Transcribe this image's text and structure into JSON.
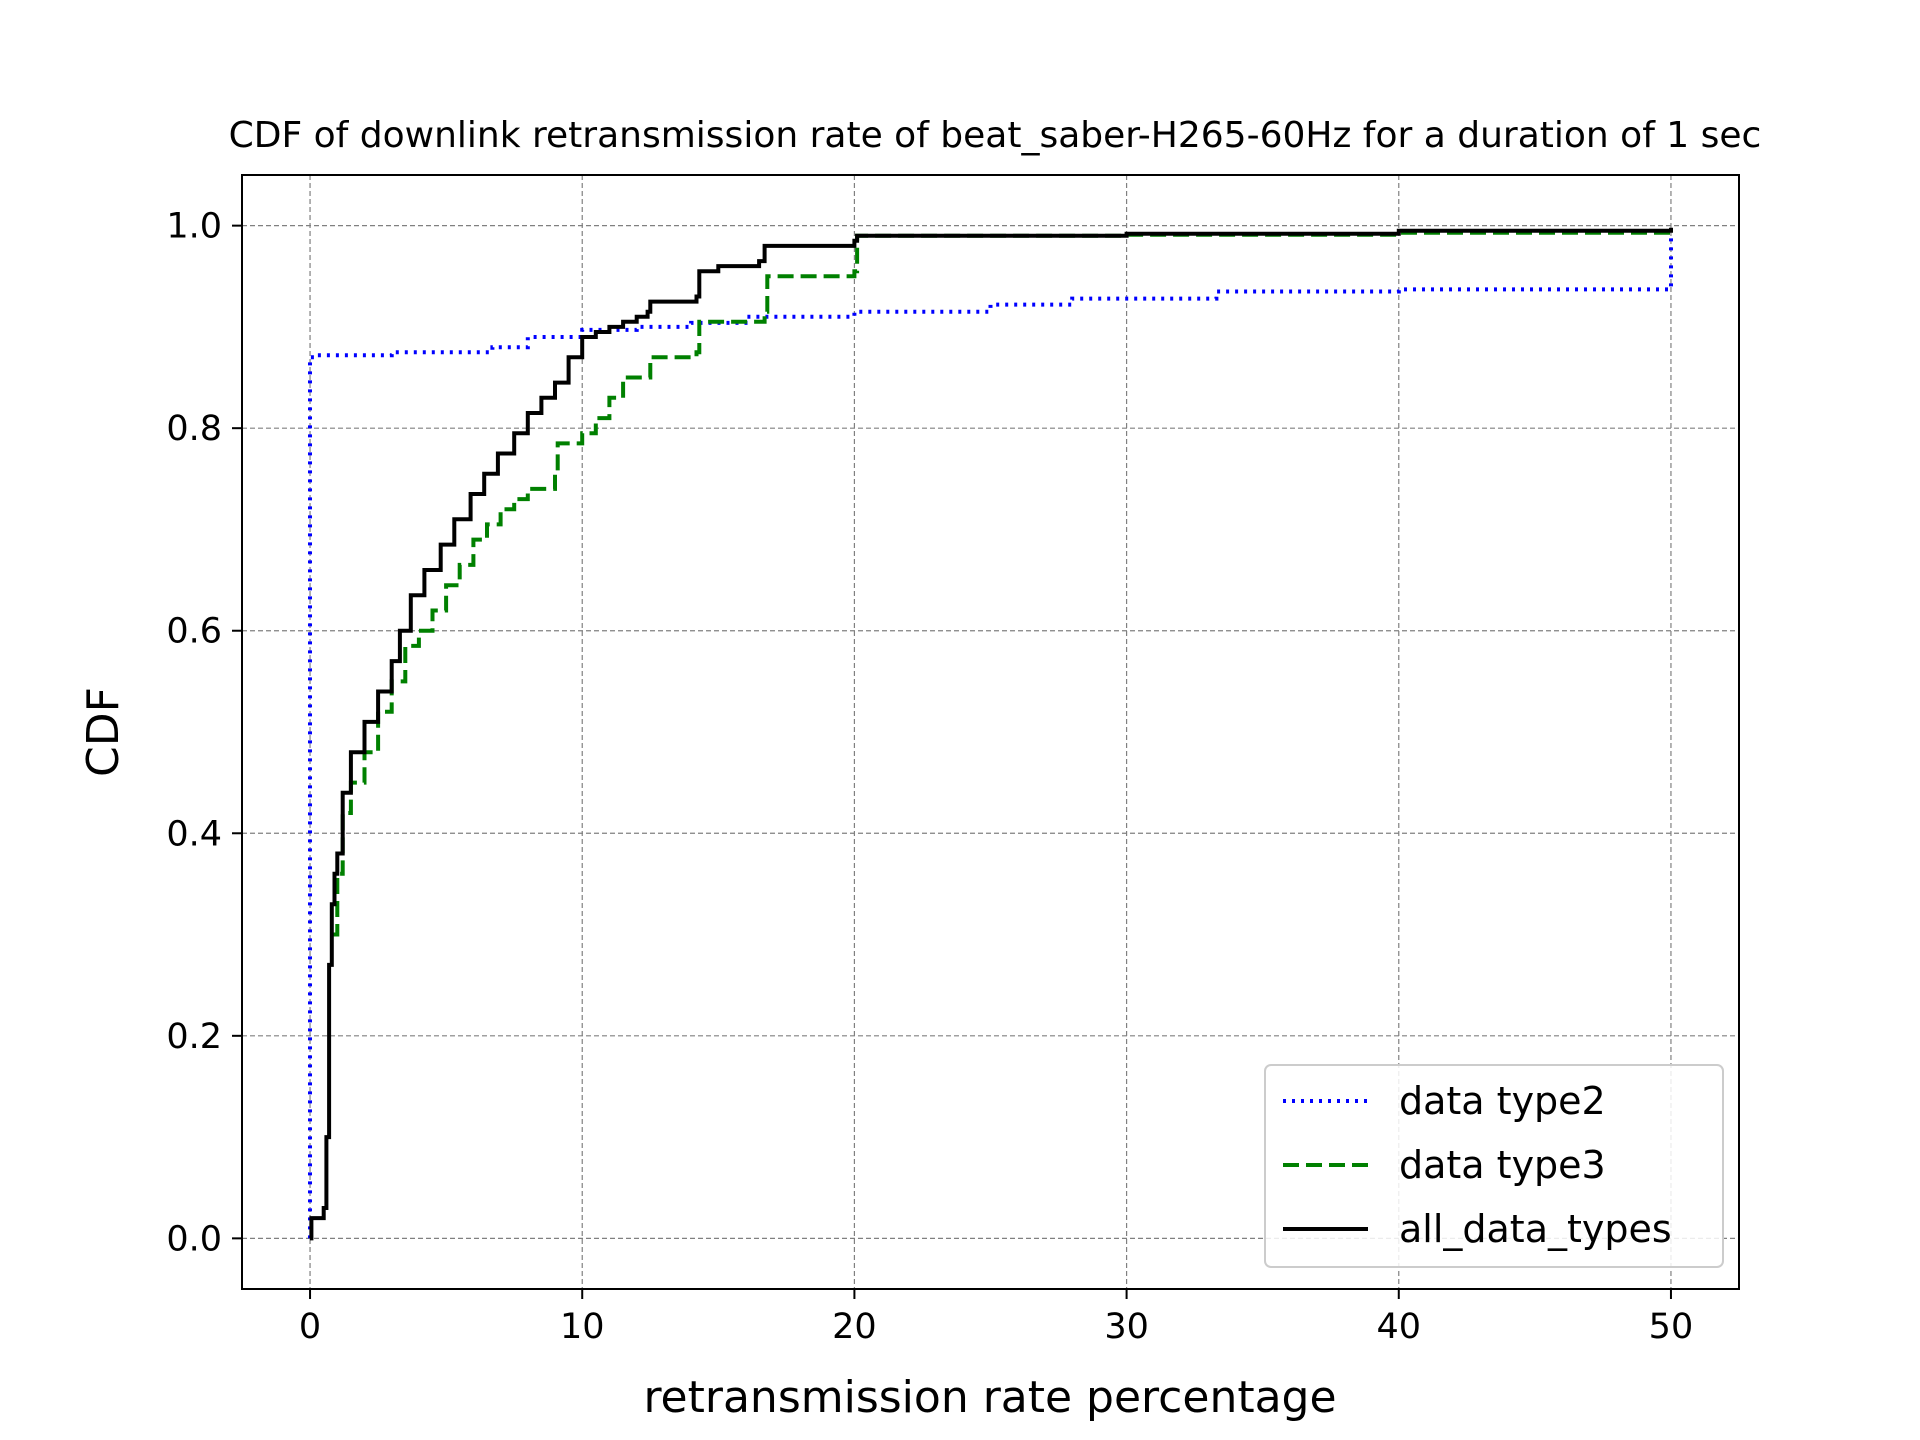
{
  "chart_data": {
    "type": "line",
    "title": "CDF of downlink retransmission rate of beat_saber-H265-60Hz for a duration of 1 sec",
    "xlabel": "retransmission rate percentage",
    "ylabel": "CDF",
    "xlim": [
      -2.5,
      52.5
    ],
    "ylim": [
      -0.05,
      1.05
    ],
    "xticks": [
      0,
      10,
      20,
      30,
      40,
      50
    ],
    "xtick_labels": [
      "0",
      "10",
      "20",
      "30",
      "40",
      "50"
    ],
    "yticks": [
      0.0,
      0.2,
      0.4,
      0.6,
      0.8,
      1.0
    ],
    "ytick_labels": [
      "0.0",
      "0.2",
      "0.4",
      "0.6",
      "0.8",
      "1.0"
    ],
    "grid": true,
    "legend_position": "bottom-right",
    "series": [
      {
        "name": "data type2",
        "color": "#0000ff",
        "style": "dotted",
        "x": [
          0,
          0,
          0.2,
          3,
          6.7,
          8,
          10,
          12,
          14,
          16,
          20,
          25,
          28,
          33.3,
          40,
          50,
          50
        ],
        "y": [
          0,
          0.87,
          0.872,
          0.875,
          0.88,
          0.89,
          0.897,
          0.9,
          0.904,
          0.91,
          0.915,
          0.922,
          0.928,
          0.935,
          0.937,
          0.94,
          1.0
        ]
      },
      {
        "name": "data type3",
        "color": "#008000",
        "style": "dashed",
        "x": [
          0.8,
          1.0,
          1.2,
          1.5,
          2.0,
          2.5,
          3.0,
          3.5,
          4.0,
          4.5,
          5.0,
          5.5,
          6.0,
          6.5,
          7.0,
          7.5,
          8.0,
          9.0,
          9.1,
          10.0,
          10.5,
          11.0,
          11.5,
          12.5,
          14.2,
          14.3,
          16.7,
          16.8,
          20.0,
          20.1,
          30,
          40,
          50
        ],
        "y": [
          0.3,
          0.36,
          0.42,
          0.45,
          0.48,
          0.52,
          0.55,
          0.585,
          0.6,
          0.62,
          0.645,
          0.665,
          0.69,
          0.705,
          0.72,
          0.73,
          0.74,
          0.755,
          0.785,
          0.795,
          0.81,
          0.83,
          0.85,
          0.87,
          0.875,
          0.905,
          0.915,
          0.95,
          0.955,
          0.99,
          0.991,
          0.993,
          0.995
        ]
      },
      {
        "name": "all_data_types",
        "color": "#000000",
        "style": "solid",
        "x": [
          0,
          0.05,
          0.5,
          0.6,
          0.7,
          0.8,
          0.9,
          1.0,
          1.2,
          1.5,
          2.0,
          2.5,
          3.0,
          3.3,
          3.7,
          4.2,
          4.8,
          5.3,
          5.9,
          6.4,
          6.9,
          7.5,
          8.0,
          8.5,
          9.0,
          9.5,
          10.0,
          10.5,
          11.0,
          11.5,
          12.0,
          12.4,
          12.5,
          14.2,
          14.3,
          15.0,
          16.5,
          16.7,
          17.0,
          20.0,
          20.1,
          30,
          40,
          50
        ],
        "y": [
          0,
          0.02,
          0.03,
          0.1,
          0.27,
          0.33,
          0.36,
          0.38,
          0.44,
          0.48,
          0.51,
          0.54,
          0.57,
          0.6,
          0.635,
          0.66,
          0.685,
          0.71,
          0.735,
          0.755,
          0.775,
          0.795,
          0.815,
          0.83,
          0.845,
          0.87,
          0.89,
          0.895,
          0.9,
          0.905,
          0.91,
          0.915,
          0.925,
          0.93,
          0.955,
          0.96,
          0.965,
          0.98,
          0.98,
          0.985,
          0.99,
          0.992,
          0.995,
          0.998
        ]
      }
    ]
  }
}
